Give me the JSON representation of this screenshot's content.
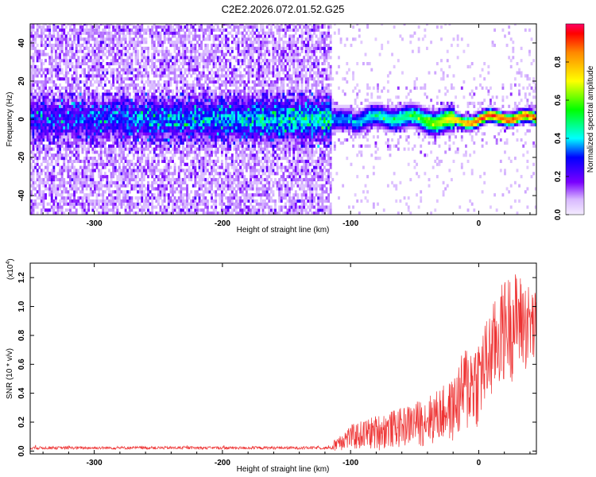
{
  "title": "C2E2.2026.072.01.52.G25",
  "chart_data": [
    {
      "type": "heatmap",
      "panel": "spectrogram",
      "xlabel": "Height of straight line (km)",
      "ylabel": "Frequency (Hz)",
      "xlim": [
        -350,
        45
      ],
      "ylim": [
        -50,
        50
      ],
      "xticks": [
        -300,
        -200,
        -100,
        0
      ],
      "xtick_labels": [
        "-300",
        "-200",
        "-100",
        "0"
      ],
      "yticks": [
        -40,
        -20,
        0,
        20,
        40
      ],
      "ytick_labels": [
        "-40",
        "-20",
        "0",
        "20",
        "40"
      ],
      "sparse_region_end_km": -115,
      "description_values": {
        "ridge_frequency_hz": 0,
        "ridge_amplitude_at_-350_km": 0.15,
        "ridge_amplitude_at_-100_km": 0.35,
        "ridge_amplitude_at_-50_km": 0.5,
        "ridge_amplitude_at_0_km": 0.9,
        "ridge_amplitude_at_45_km": 0.85
      },
      "colorbar": {
        "label": "Normalized spectral amplitude",
        "range": [
          0.0,
          1.0
        ],
        "ticks": [
          0.0,
          0.2,
          0.4,
          0.6,
          0.8
        ],
        "tick_labels": [
          "0.0",
          "0.2",
          "0.4",
          "0.6",
          "0.8"
        ]
      }
    },
    {
      "type": "line",
      "panel": "snr",
      "color": "#ee3333",
      "xlabel": "Height of straight line (km)",
      "ylabel": "SNR (10 * v/v)",
      "yscale_label": "(x10",
      "yscale_exponent": "4",
      "xlim": [
        -350,
        45
      ],
      "ylim": [
        -0.02,
        1.3
      ],
      "xticks": [
        -300,
        -200,
        -100,
        0
      ],
      "xtick_labels": [
        "-300",
        "-200",
        "-100",
        "0"
      ],
      "yticks": [
        0.0,
        0.2,
        0.4,
        0.6,
        0.8,
        1.0,
        1.2
      ],
      "ytick_labels": [
        "0.0",
        "0.2",
        "0.4",
        "0.6",
        "0.8",
        "1.0",
        "1.2"
      ],
      "envelope_x": [
        -350,
        -200,
        -115,
        -110,
        -100,
        -80,
        -60,
        -40,
        -20,
        -10,
        0,
        10,
        20,
        30,
        45
      ],
      "envelope_ymax": [
        0.04,
        0.04,
        0.04,
        0.12,
        0.18,
        0.25,
        0.3,
        0.38,
        0.5,
        0.75,
        0.8,
        1.0,
        1.2,
        1.25,
        1.1
      ],
      "envelope_ymin": [
        0.0,
        0.0,
        0.0,
        0.0,
        0.0,
        0.0,
        0.02,
        0.03,
        0.05,
        0.08,
        0.15,
        0.3,
        0.45,
        0.5,
        0.55
      ]
    }
  ]
}
